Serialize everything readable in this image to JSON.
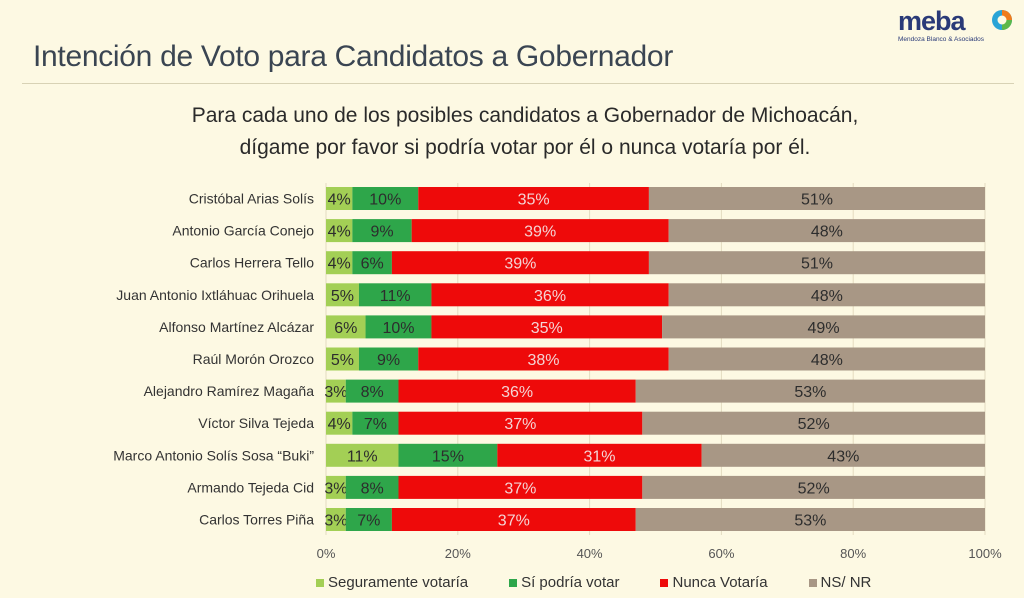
{
  "header": {
    "title": "Intención de Voto para Candidatos a Gobernador",
    "logo": {
      "name": "meba",
      "tagline": "Mendoza Blanco & Asociados"
    }
  },
  "subtitle": {
    "line1": "Para cada uno de los posibles candidatos a Gobernador de Michoacán,",
    "line2": "dígame por favor si podría votar por él o nunca votaría por él."
  },
  "chart_data": {
    "type": "bar",
    "orientation": "horizontal",
    "stacked": true,
    "title": "Intención de Voto para Candidatos a Gobernador",
    "xlabel": "",
    "ylabel": "",
    "xlim": [
      0,
      100
    ],
    "x_ticks": [
      "0%",
      "20%",
      "40%",
      "60%",
      "80%",
      "100%"
    ],
    "grid": true,
    "legend_position": "bottom",
    "categories": [
      "Cristóbal Arias Solís",
      "Antonio García Conejo",
      "Carlos Herrera Tello",
      "Juan Antonio Ixtláhuac Orihuela",
      "Alfonso Martínez Alcázar",
      "Raúl Morón Orozco",
      "Alejandro Ramírez Magaña",
      "Víctor Silva Tejeda",
      "Marco Antonio Solís Sosa “Buki”",
      "Armando Tejeda Cid",
      "Carlos Torres Piña"
    ],
    "series": [
      {
        "name": "Seguramente votaría",
        "color": "#a3cf55",
        "values": [
          4,
          4,
          4,
          5,
          6,
          5,
          3,
          4,
          11,
          3,
          3
        ]
      },
      {
        "name": "Sí podría votar",
        "color": "#2ea64a",
        "values": [
          10,
          9,
          6,
          11,
          10,
          9,
          8,
          7,
          15,
          8,
          7
        ]
      },
      {
        "name": "Nunca Votaría",
        "color": "#ee0a0a",
        "values": [
          35,
          39,
          39,
          36,
          35,
          38,
          36,
          37,
          31,
          37,
          37
        ]
      },
      {
        "name": "NS/ NR",
        "color": "#a89785",
        "values": [
          51,
          48,
          51,
          48,
          49,
          48,
          53,
          52,
          43,
          52,
          53
        ]
      }
    ]
  }
}
